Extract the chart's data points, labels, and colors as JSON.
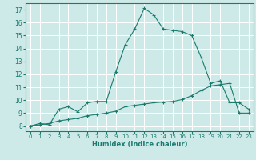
{
  "title": "",
  "xlabel": "Humidex (Indice chaleur)",
  "background_color": "#ceeae8",
  "line_color": "#1a7a6e",
  "grid_color": "#ffffff",
  "xlim": [
    -0.5,
    23.5
  ],
  "ylim": [
    7.6,
    17.5
  ],
  "xticks": [
    0,
    1,
    2,
    3,
    4,
    5,
    6,
    7,
    8,
    9,
    10,
    11,
    12,
    13,
    14,
    15,
    16,
    17,
    18,
    19,
    20,
    21,
    22,
    23
  ],
  "yticks": [
    8,
    9,
    10,
    11,
    12,
    13,
    14,
    15,
    16,
    17
  ],
  "series1_x": [
    0,
    1,
    2,
    3,
    4,
    5,
    6,
    7,
    8,
    9,
    10,
    11,
    12,
    13,
    14,
    15,
    16,
    17,
    18,
    19,
    20,
    21,
    22,
    23
  ],
  "series1_y": [
    8.0,
    8.2,
    8.1,
    9.3,
    9.5,
    9.1,
    9.8,
    9.9,
    9.9,
    12.2,
    14.3,
    15.5,
    17.1,
    16.6,
    15.5,
    15.4,
    15.3,
    15.0,
    13.3,
    11.3,
    11.5,
    9.8,
    9.8,
    9.3
  ],
  "series2_x": [
    0,
    1,
    2,
    3,
    4,
    5,
    6,
    7,
    8,
    9,
    10,
    11,
    12,
    13,
    14,
    15,
    16,
    17,
    18,
    19,
    20,
    21,
    22,
    23
  ],
  "series2_y": [
    8.0,
    8.1,
    8.2,
    8.4,
    8.5,
    8.6,
    8.8,
    8.9,
    9.0,
    9.15,
    9.5,
    9.6,
    9.7,
    9.8,
    9.85,
    9.9,
    10.05,
    10.35,
    10.75,
    11.1,
    11.2,
    11.3,
    9.0,
    9.0
  ]
}
